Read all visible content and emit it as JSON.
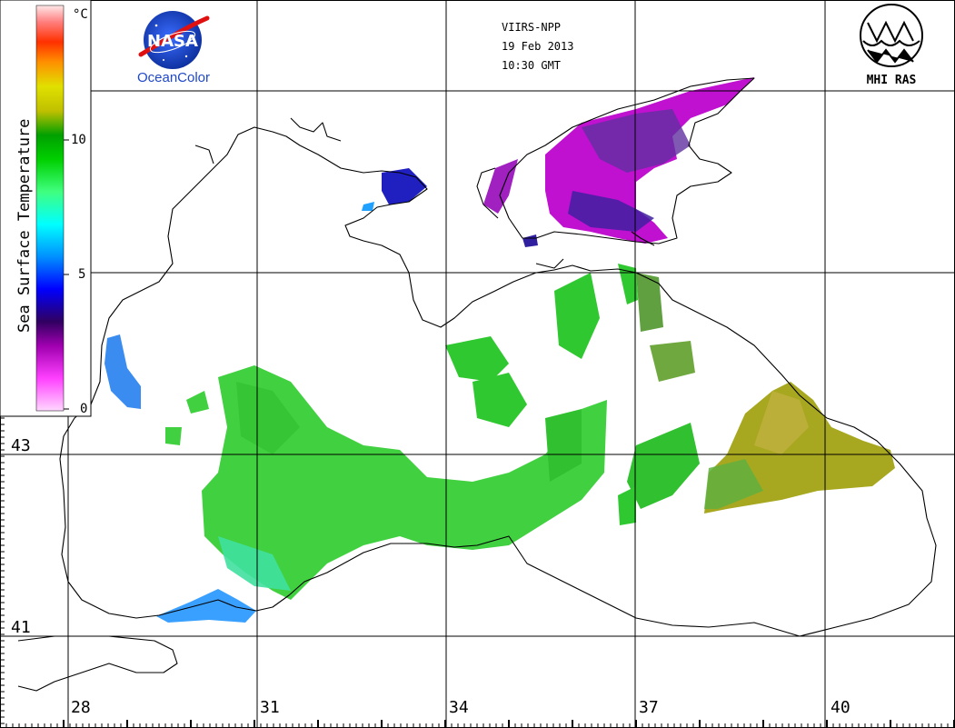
{
  "header": {
    "satellite": "VIIRS-NPP",
    "date": "19 Feb 2013",
    "time": "10:30 GMT"
  },
  "logos": {
    "nasa_text": "NASA",
    "nasa_caption": "OceanColor",
    "mhi_caption": "MHI RAS"
  },
  "colorbar": {
    "title": "Sea Surface Temperature",
    "unit": "°C",
    "ticks": [
      "10",
      "5",
      "0"
    ],
    "stops": [
      "#ffd0ff",
      "#ff40ff",
      "#a000c0",
      "#301080",
      "#0000ff",
      "#00a0ff",
      "#00ffff",
      "#40ff80",
      "#00e000",
      "#00c000",
      "#a0c000",
      "#e0e000",
      "#ffa000",
      "#ff4000",
      "#ff8080",
      "#ffe8e8"
    ]
  },
  "axes": {
    "longitudes": [
      "28",
      "31",
      "34",
      "37",
      "40"
    ],
    "latitudes": [
      "43",
      "41"
    ]
  }
}
